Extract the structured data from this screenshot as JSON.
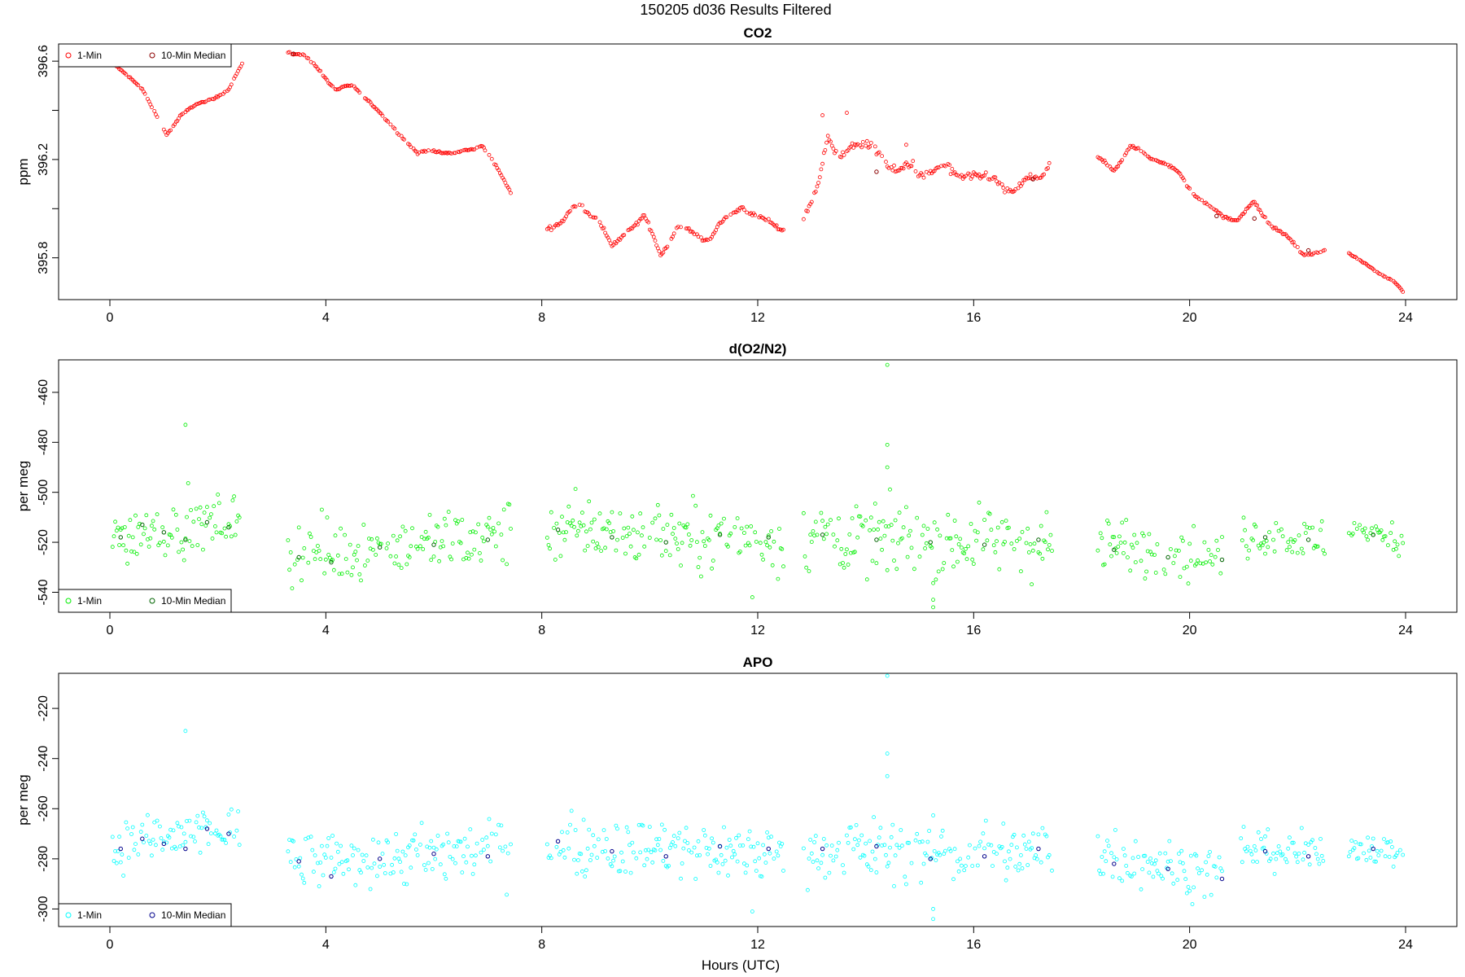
{
  "page": {
    "title": "150205   d036   Results Filtered",
    "xlabel": "Hours (UTC)"
  },
  "colors": {
    "co2_1min": "#ff0000",
    "co2_median": "#8b0000",
    "o2_1min": "#00ee00",
    "o2_median": "#006400",
    "apo_1min": "#00ffff",
    "apo_median": "#00008b"
  },
  "chart_data": [
    {
      "type": "scatter",
      "title": "CO2",
      "ylabel": "ppm",
      "xlim": [
        -0.95,
        24.95
      ],
      "ylim": [
        395.63,
        396.67
      ],
      "xticks": [
        0,
        4,
        8,
        12,
        16,
        20,
        24
      ],
      "yticks": [
        395.8,
        396.0,
        396.2,
        396.4,
        396.6
      ],
      "ytick_labels": [
        "395.8",
        "",
        "396.2",
        "",
        "396.6"
      ],
      "legend": {
        "position": "top-left",
        "entries": [
          "1-Min",
          "10-Min Median"
        ]
      },
      "segments": [
        {
          "x": [
            0.0,
            0.2,
            0.4,
            0.6,
            0.8,
            1.05,
            1.3,
            1.6,
            1.9,
            2.2,
            2.45
          ],
          "y": [
            396.6,
            396.56,
            396.53,
            396.49,
            396.4,
            396.3,
            396.38,
            396.42,
            396.45,
            396.48,
            396.59
          ],
          "noise": 0.008
        },
        {
          "x": [
            3.3,
            3.6,
            3.9,
            4.2,
            4.5,
            4.8,
            5.1,
            5.4,
            5.7,
            6.0,
            6.4,
            6.9,
            7.2,
            7.45
          ],
          "y": [
            396.64,
            396.62,
            396.56,
            396.48,
            396.5,
            396.44,
            396.36,
            396.3,
            396.22,
            396.24,
            396.22,
            396.26,
            396.15,
            396.06
          ],
          "noise": 0.01
        },
        {
          "x": [
            8.1,
            8.4,
            8.7,
            9.0,
            9.3,
            9.6,
            9.9,
            10.2,
            10.5,
            10.8,
            11.1,
            11.4,
            11.7,
            12.0,
            12.2,
            12.5
          ],
          "y": [
            395.93,
            395.95,
            396.02,
            395.97,
            395.84,
            395.92,
            395.96,
            395.82,
            395.92,
            395.9,
            395.88,
            395.95,
            396.02,
            395.95,
            395.95,
            395.92
          ],
          "noise": 0.02
        },
        {
          "x": [
            12.85,
            13.1,
            13.3,
            13.5,
            13.8,
            14.1,
            14.4,
            14.7,
            15.0,
            15.3,
            15.6,
            15.9,
            16.2,
            16.5,
            16.8,
            17.1,
            17.4
          ],
          "y": [
            395.95,
            396.12,
            396.28,
            396.18,
            396.3,
            396.22,
            396.2,
            396.16,
            396.14,
            396.18,
            396.12,
            396.16,
            396.1,
            396.12,
            396.06,
            396.12,
            396.2
          ],
          "noise": 0.05
        },
        {
          "x": [
            18.3,
            18.6,
            18.9,
            19.2,
            19.5,
            19.8,
            20.1,
            20.4,
            20.6,
            20.9,
            21.2,
            21.5,
            21.8,
            22.1,
            22.5
          ],
          "y": [
            396.2,
            396.16,
            396.25,
            396.22,
            396.19,
            396.14,
            396.06,
            396.0,
            395.97,
            395.96,
            396.02,
            395.94,
            395.88,
            395.82,
            395.82
          ],
          "noise": 0.015
        },
        {
          "x": [
            22.95,
            23.2,
            23.5,
            23.75,
            23.95
          ],
          "y": [
            395.82,
            395.78,
            395.74,
            395.71,
            395.66
          ],
          "noise": 0.006
        }
      ],
      "median_points": [
        {
          "x": 3.4,
          "y": 396.63
        },
        {
          "x": 14.2,
          "y": 396.15
        },
        {
          "x": 17.1,
          "y": 396.12
        },
        {
          "x": 20.5,
          "y": 395.97
        },
        {
          "x": 21.2,
          "y": 395.96
        },
        {
          "x": 22.2,
          "y": 395.83
        }
      ],
      "outliers": [
        {
          "x": 13.65,
          "y": 396.39
        },
        {
          "x": 13.2,
          "y": 396.38
        },
        {
          "x": 14.75,
          "y": 396.26
        }
      ]
    },
    {
      "type": "scatter",
      "title": "d(O2/N2)",
      "ylabel": "per meg",
      "xlim": [
        -0.95,
        24.95
      ],
      "ylim": [
        -548,
        -447
      ],
      "xticks": [
        0,
        4,
        8,
        12,
        16,
        20,
        24
      ],
      "yticks": [
        -540,
        -520,
        -500,
        -480,
        -460
      ],
      "ytick_labels": [
        "-540",
        "-520",
        "-500",
        "-480",
        "-460"
      ],
      "legend": {
        "position": "bottom-left",
        "entries": [
          "1-Min",
          "10-Min Median"
        ]
      },
      "segments": [
        {
          "x": [
            0.05,
            2.4
          ],
          "y": [
            -518,
            -510
          ],
          "noise": 11
        },
        {
          "x": [
            3.3,
            7.45
          ],
          "y": [
            -526,
            -516
          ],
          "noise": 12
        },
        {
          "x": [
            8.1,
            12.5
          ],
          "y": [
            -514,
            -520
          ],
          "noise": 12
        },
        {
          "x": [
            12.85,
            17.45
          ],
          "y": [
            -518,
            -520
          ],
          "noise": 13
        },
        {
          "x": [
            18.3,
            20.6
          ],
          "y": [
            -520,
            -527
          ],
          "noise": 11
        },
        {
          "x": [
            20.95,
            22.5
          ],
          "y": [
            -517,
            -520
          ],
          "noise": 8
        },
        {
          "x": [
            22.95,
            23.95
          ],
          "y": [
            -515,
            -519
          ],
          "noise": 6
        }
      ],
      "median_points": [
        {
          "x": 0.2,
          "y": -518
        },
        {
          "x": 0.6,
          "y": -513
        },
        {
          "x": 1.0,
          "y": -516
        },
        {
          "x": 1.4,
          "y": -519
        },
        {
          "x": 1.8,
          "y": -512
        },
        {
          "x": 2.2,
          "y": -514
        },
        {
          "x": 3.5,
          "y": -526
        },
        {
          "x": 4.1,
          "y": -528
        },
        {
          "x": 5.0,
          "y": -522
        },
        {
          "x": 6.0,
          "y": -521
        },
        {
          "x": 7.0,
          "y": -519
        },
        {
          "x": 8.3,
          "y": -515
        },
        {
          "x": 9.3,
          "y": -518
        },
        {
          "x": 10.3,
          "y": -520
        },
        {
          "x": 11.3,
          "y": -517
        },
        {
          "x": 12.2,
          "y": -518
        },
        {
          "x": 13.2,
          "y": -517
        },
        {
          "x": 14.2,
          "y": -519
        },
        {
          "x": 15.2,
          "y": -520
        },
        {
          "x": 16.2,
          "y": -521
        },
        {
          "x": 17.2,
          "y": -519
        },
        {
          "x": 18.6,
          "y": -523
        },
        {
          "x": 19.6,
          "y": -526
        },
        {
          "x": 20.6,
          "y": -527
        },
        {
          "x": 21.4,
          "y": -518
        },
        {
          "x": 22.2,
          "y": -519
        },
        {
          "x": 23.4,
          "y": -517
        }
      ],
      "outliers": [
        {
          "x": 1.4,
          "y": -473
        },
        {
          "x": 14.4,
          "y": -449
        },
        {
          "x": 14.4,
          "y": -481
        },
        {
          "x": 14.4,
          "y": -490
        },
        {
          "x": 15.25,
          "y": -543
        },
        {
          "x": 15.25,
          "y": -546
        },
        {
          "x": 11.9,
          "y": -542
        }
      ]
    },
    {
      "type": "scatter",
      "title": "APO",
      "ylabel": "per meg",
      "xlim": [
        -0.95,
        24.95
      ],
      "ylim": [
        -307,
        -206
      ],
      "xticks": [
        0,
        4,
        8,
        12,
        16,
        20,
        24
      ],
      "yticks": [
        -300,
        -280,
        -260,
        -240,
        -220
      ],
      "ytick_labels": [
        "-300",
        "-280",
        "-260",
        "-240",
        "-220"
      ],
      "legend": {
        "position": "bottom-left",
        "entries": [
          "1-Min",
          "10-Min Median"
        ]
      },
      "segments": [
        {
          "x": [
            0.05,
            2.4
          ],
          "y": [
            -275,
            -268
          ],
          "noise": 10
        },
        {
          "x": [
            3.3,
            7.45
          ],
          "y": [
            -282,
            -276
          ],
          "noise": 11
        },
        {
          "x": [
            8.1,
            12.5
          ],
          "y": [
            -274,
            -278
          ],
          "noise": 11
        },
        {
          "x": [
            12.85,
            17.45
          ],
          "y": [
            -276,
            -278
          ],
          "noise": 12
        },
        {
          "x": [
            18.3,
            20.6
          ],
          "y": [
            -278,
            -286
          ],
          "noise": 10
        },
        {
          "x": [
            20.95,
            22.5
          ],
          "y": [
            -275,
            -279
          ],
          "noise": 8
        },
        {
          "x": [
            22.95,
            23.95
          ],
          "y": [
            -274,
            -278
          ],
          "noise": 6
        }
      ],
      "median_points": [
        {
          "x": 0.2,
          "y": -276
        },
        {
          "x": 0.6,
          "y": -272
        },
        {
          "x": 1.0,
          "y": -274
        },
        {
          "x": 1.4,
          "y": -276
        },
        {
          "x": 1.8,
          "y": -268
        },
        {
          "x": 2.2,
          "y": -270
        },
        {
          "x": 3.5,
          "y": -281
        },
        {
          "x": 4.1,
          "y": -287
        },
        {
          "x": 5.0,
          "y": -280
        },
        {
          "x": 6.0,
          "y": -278
        },
        {
          "x": 7.0,
          "y": -279
        },
        {
          "x": 8.3,
          "y": -273
        },
        {
          "x": 9.3,
          "y": -277
        },
        {
          "x": 10.3,
          "y": -279
        },
        {
          "x": 11.3,
          "y": -275
        },
        {
          "x": 12.2,
          "y": -276
        },
        {
          "x": 13.2,
          "y": -276
        },
        {
          "x": 14.2,
          "y": -275
        },
        {
          "x": 15.2,
          "y": -280
        },
        {
          "x": 16.2,
          "y": -279
        },
        {
          "x": 17.2,
          "y": -276
        },
        {
          "x": 18.6,
          "y": -282
        },
        {
          "x": 19.6,
          "y": -284
        },
        {
          "x": 20.6,
          "y": -288
        },
        {
          "x": 21.4,
          "y": -277
        },
        {
          "x": 22.2,
          "y": -279
        },
        {
          "x": 23.4,
          "y": -276
        }
      ],
      "outliers": [
        {
          "x": 1.4,
          "y": -229
        },
        {
          "x": 14.4,
          "y": -207
        },
        {
          "x": 14.4,
          "y": -238
        },
        {
          "x": 14.4,
          "y": -247
        },
        {
          "x": 15.25,
          "y": -300
        },
        {
          "x": 15.25,
          "y": -304
        },
        {
          "x": 11.9,
          "y": -301
        }
      ]
    }
  ]
}
